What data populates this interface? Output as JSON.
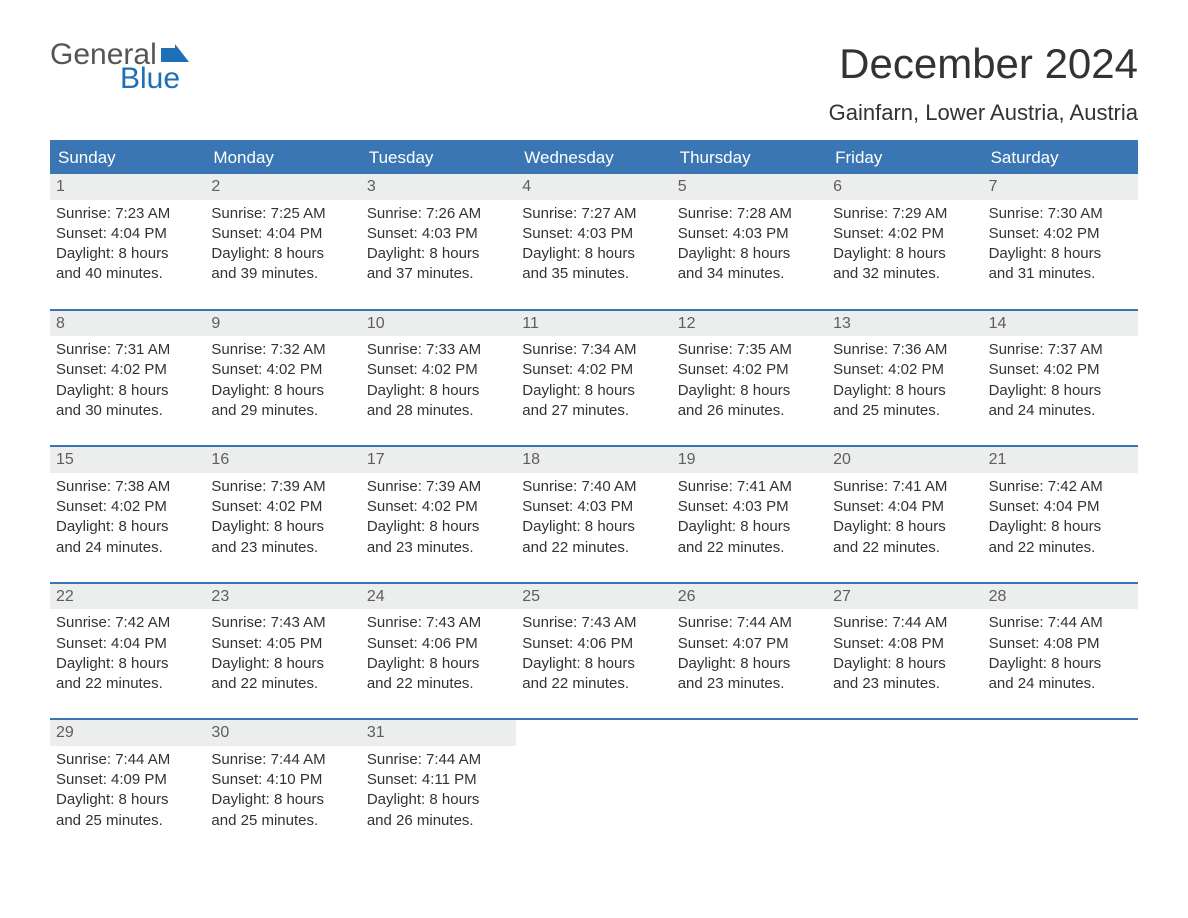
{
  "logo": {
    "text_general": "General",
    "text_blue": "Blue",
    "flag_color": "#1d6fb8"
  },
  "title": "December 2024",
  "location": "Gainfarn, Lower Austria, Austria",
  "header_bg": "#3a76b3",
  "header_fg": "#ffffff",
  "daynum_bg": "#eceded",
  "daynum_fg": "#5e5e5e",
  "text_color": "#333333",
  "day_names": [
    "Sunday",
    "Monday",
    "Tuesday",
    "Wednesday",
    "Thursday",
    "Friday",
    "Saturday"
  ],
  "weeks": [
    [
      {
        "day": "1",
        "sunrise": "7:23 AM",
        "sunset": "4:04 PM",
        "daylight_l1": "Daylight: 8 hours",
        "daylight_l2": "and 40 minutes."
      },
      {
        "day": "2",
        "sunrise": "7:25 AM",
        "sunset": "4:04 PM",
        "daylight_l1": "Daylight: 8 hours",
        "daylight_l2": "and 39 minutes."
      },
      {
        "day": "3",
        "sunrise": "7:26 AM",
        "sunset": "4:03 PM",
        "daylight_l1": "Daylight: 8 hours",
        "daylight_l2": "and 37 minutes."
      },
      {
        "day": "4",
        "sunrise": "7:27 AM",
        "sunset": "4:03 PM",
        "daylight_l1": "Daylight: 8 hours",
        "daylight_l2": "and 35 minutes."
      },
      {
        "day": "5",
        "sunrise": "7:28 AM",
        "sunset": "4:03 PM",
        "daylight_l1": "Daylight: 8 hours",
        "daylight_l2": "and 34 minutes."
      },
      {
        "day": "6",
        "sunrise": "7:29 AM",
        "sunset": "4:02 PM",
        "daylight_l1": "Daylight: 8 hours",
        "daylight_l2": "and 32 minutes."
      },
      {
        "day": "7",
        "sunrise": "7:30 AM",
        "sunset": "4:02 PM",
        "daylight_l1": "Daylight: 8 hours",
        "daylight_l2": "and 31 minutes."
      }
    ],
    [
      {
        "day": "8",
        "sunrise": "7:31 AM",
        "sunset": "4:02 PM",
        "daylight_l1": "Daylight: 8 hours",
        "daylight_l2": "and 30 minutes."
      },
      {
        "day": "9",
        "sunrise": "7:32 AM",
        "sunset": "4:02 PM",
        "daylight_l1": "Daylight: 8 hours",
        "daylight_l2": "and 29 minutes."
      },
      {
        "day": "10",
        "sunrise": "7:33 AM",
        "sunset": "4:02 PM",
        "daylight_l1": "Daylight: 8 hours",
        "daylight_l2": "and 28 minutes."
      },
      {
        "day": "11",
        "sunrise": "7:34 AM",
        "sunset": "4:02 PM",
        "daylight_l1": "Daylight: 8 hours",
        "daylight_l2": "and 27 minutes."
      },
      {
        "day": "12",
        "sunrise": "7:35 AM",
        "sunset": "4:02 PM",
        "daylight_l1": "Daylight: 8 hours",
        "daylight_l2": "and 26 minutes."
      },
      {
        "day": "13",
        "sunrise": "7:36 AM",
        "sunset": "4:02 PM",
        "daylight_l1": "Daylight: 8 hours",
        "daylight_l2": "and 25 minutes."
      },
      {
        "day": "14",
        "sunrise": "7:37 AM",
        "sunset": "4:02 PM",
        "daylight_l1": "Daylight: 8 hours",
        "daylight_l2": "and 24 minutes."
      }
    ],
    [
      {
        "day": "15",
        "sunrise": "7:38 AM",
        "sunset": "4:02 PM",
        "daylight_l1": "Daylight: 8 hours",
        "daylight_l2": "and 24 minutes."
      },
      {
        "day": "16",
        "sunrise": "7:39 AM",
        "sunset": "4:02 PM",
        "daylight_l1": "Daylight: 8 hours",
        "daylight_l2": "and 23 minutes."
      },
      {
        "day": "17",
        "sunrise": "7:39 AM",
        "sunset": "4:02 PM",
        "daylight_l1": "Daylight: 8 hours",
        "daylight_l2": "and 23 minutes."
      },
      {
        "day": "18",
        "sunrise": "7:40 AM",
        "sunset": "4:03 PM",
        "daylight_l1": "Daylight: 8 hours",
        "daylight_l2": "and 22 minutes."
      },
      {
        "day": "19",
        "sunrise": "7:41 AM",
        "sunset": "4:03 PM",
        "daylight_l1": "Daylight: 8 hours",
        "daylight_l2": "and 22 minutes."
      },
      {
        "day": "20",
        "sunrise": "7:41 AM",
        "sunset": "4:04 PM",
        "daylight_l1": "Daylight: 8 hours",
        "daylight_l2": "and 22 minutes."
      },
      {
        "day": "21",
        "sunrise": "7:42 AM",
        "sunset": "4:04 PM",
        "daylight_l1": "Daylight: 8 hours",
        "daylight_l2": "and 22 minutes."
      }
    ],
    [
      {
        "day": "22",
        "sunrise": "7:42 AM",
        "sunset": "4:04 PM",
        "daylight_l1": "Daylight: 8 hours",
        "daylight_l2": "and 22 minutes."
      },
      {
        "day": "23",
        "sunrise": "7:43 AM",
        "sunset": "4:05 PM",
        "daylight_l1": "Daylight: 8 hours",
        "daylight_l2": "and 22 minutes."
      },
      {
        "day": "24",
        "sunrise": "7:43 AM",
        "sunset": "4:06 PM",
        "daylight_l1": "Daylight: 8 hours",
        "daylight_l2": "and 22 minutes."
      },
      {
        "day": "25",
        "sunrise": "7:43 AM",
        "sunset": "4:06 PM",
        "daylight_l1": "Daylight: 8 hours",
        "daylight_l2": "and 22 minutes."
      },
      {
        "day": "26",
        "sunrise": "7:44 AM",
        "sunset": "4:07 PM",
        "daylight_l1": "Daylight: 8 hours",
        "daylight_l2": "and 23 minutes."
      },
      {
        "day": "27",
        "sunrise": "7:44 AM",
        "sunset": "4:08 PM",
        "daylight_l1": "Daylight: 8 hours",
        "daylight_l2": "and 23 minutes."
      },
      {
        "day": "28",
        "sunrise": "7:44 AM",
        "sunset": "4:08 PM",
        "daylight_l1": "Daylight: 8 hours",
        "daylight_l2": "and 24 minutes."
      }
    ],
    [
      {
        "day": "29",
        "sunrise": "7:44 AM",
        "sunset": "4:09 PM",
        "daylight_l1": "Daylight: 8 hours",
        "daylight_l2": "and 25 minutes."
      },
      {
        "day": "30",
        "sunrise": "7:44 AM",
        "sunset": "4:10 PM",
        "daylight_l1": "Daylight: 8 hours",
        "daylight_l2": "and 25 minutes."
      },
      {
        "day": "31",
        "sunrise": "7:44 AM",
        "sunset": "4:11 PM",
        "daylight_l1": "Daylight: 8 hours",
        "daylight_l2": "and 26 minutes."
      },
      null,
      null,
      null,
      null
    ]
  ],
  "labels": {
    "sunrise_prefix": "Sunrise: ",
    "sunset_prefix": "Sunset: "
  }
}
